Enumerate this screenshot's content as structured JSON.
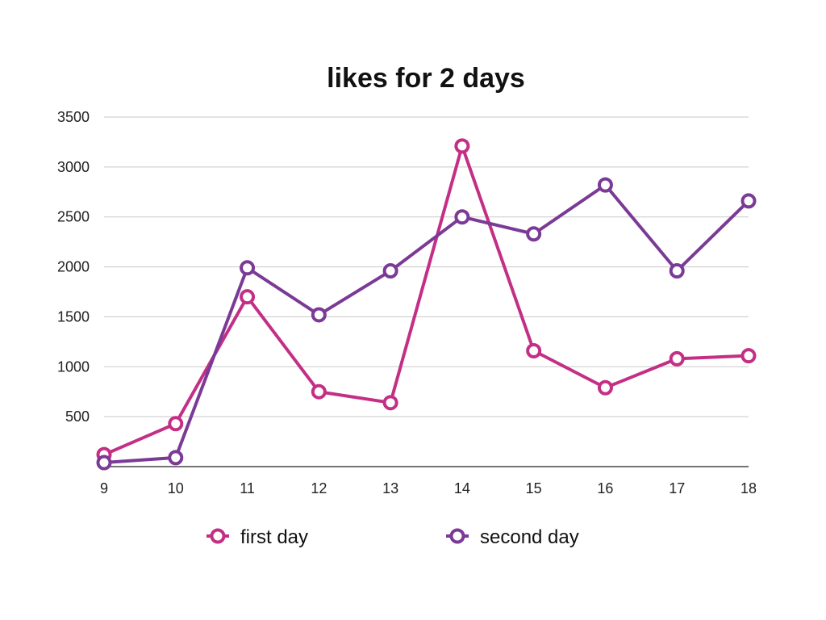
{
  "chart_data": {
    "type": "line",
    "title": "likes for 2 days",
    "xlabel": "",
    "ylabel": "",
    "x": [
      9,
      10,
      11,
      12,
      13,
      14,
      15,
      16,
      17,
      18
    ],
    "xticks": [
      "9",
      "10",
      "11",
      "12",
      "13",
      "14",
      "15",
      "16",
      "17",
      "18"
    ],
    "yticks": [
      "500",
      "1000",
      "1500",
      "2000",
      "2500",
      "3000",
      "3500"
    ],
    "ylim": [
      0,
      3500
    ],
    "grid": true,
    "legend_position": "bottom",
    "series": [
      {
        "name": "first day",
        "color": "#c42f86",
        "values": [
          120,
          430,
          1700,
          750,
          640,
          3210,
          1160,
          790,
          1080,
          1110
        ]
      },
      {
        "name": "second day",
        "color": "#7a3a96",
        "values": [
          40,
          90,
          1990,
          1520,
          1960,
          2500,
          2330,
          2820,
          1960,
          2660
        ]
      }
    ]
  }
}
